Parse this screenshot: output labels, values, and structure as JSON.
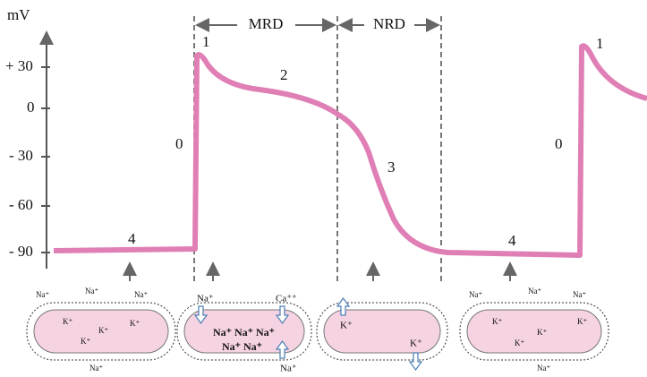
{
  "axis": {
    "unit": "mV",
    "ticks": [
      "+ 30",
      "0",
      "- 30",
      "- 60",
      "- 90"
    ]
  },
  "intervals": [
    {
      "label": "MRD"
    },
    {
      "label": "NRD"
    }
  ],
  "phases": [
    "1",
    "2",
    "0",
    "3",
    "4",
    "4",
    "0",
    "1"
  ],
  "cells": [
    {
      "ions": [
        "Na⁺",
        "Na⁺",
        "Na⁺",
        "K⁺",
        "K⁺",
        "K⁺",
        "K⁺",
        "Na⁺"
      ]
    },
    {
      "ions": [
        "Na⁺",
        "Ca⁺⁺",
        "Na⁺ Na⁺ Na⁺",
        "Na⁺ Na⁺",
        "Na⁺"
      ]
    },
    {
      "ions": [
        "K⁺",
        "K⁺"
      ]
    },
    {
      "ions": [
        "Na⁺",
        "Na⁺",
        "Na⁺",
        "K⁺",
        "K⁺",
        "K⁺",
        "K⁺",
        "Na⁺"
      ]
    }
  ]
}
